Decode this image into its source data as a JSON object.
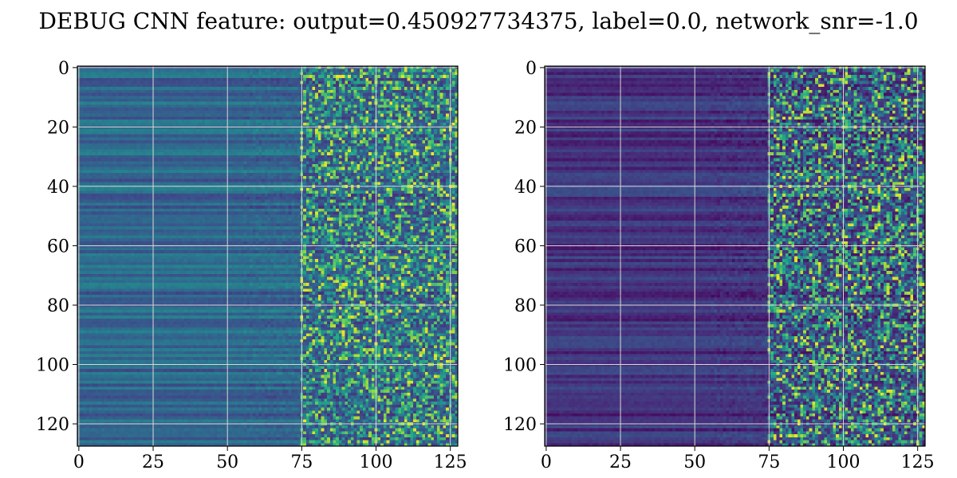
{
  "figure": {
    "suptitle": "DEBUG CNN feature: output=0.450927734375, label=0.0, network_snr=-1.0"
  },
  "chart_data": [
    {
      "type": "heatmap",
      "colormap": "viridis",
      "grid": true,
      "grid_color": "#d9d9d9",
      "matrix_shape": [
        128,
        128
      ],
      "xlim": [
        0,
        127
      ],
      "ylim": [
        127,
        0
      ],
      "xticks": [
        0,
        25,
        50,
        75,
        100,
        125
      ],
      "yticks": [
        0,
        20,
        40,
        60,
        80,
        100,
        120
      ],
      "xtick_labels": [
        "0",
        "25",
        "50",
        "75",
        "100",
        "125"
      ],
      "ytick_labels": [
        "0",
        "20",
        "40",
        "60",
        "80",
        "100",
        "120"
      ],
      "description_of_pattern": "smooth horizontal bands for columns 0-75, noisy speckled values for columns 75-127"
    },
    {
      "type": "heatmap",
      "colormap": "viridis",
      "grid": true,
      "grid_color": "#d9d9d9",
      "matrix_shape": [
        128,
        128
      ],
      "xlim": [
        0,
        127
      ],
      "ylim": [
        127,
        0
      ],
      "xticks": [
        0,
        25,
        50,
        75,
        100,
        125
      ],
      "yticks": [
        0,
        20,
        40,
        60,
        80,
        100,
        120
      ],
      "xtick_labels": [
        "0",
        "25",
        "50",
        "75",
        "100",
        "125"
      ],
      "ytick_labels": [
        "0",
        "20",
        "40",
        "60",
        "80",
        "100",
        "120"
      ],
      "description_of_pattern": "darker smooth horizontal bands for columns 0-75, noisy speckled values for columns 75-127"
    }
  ]
}
